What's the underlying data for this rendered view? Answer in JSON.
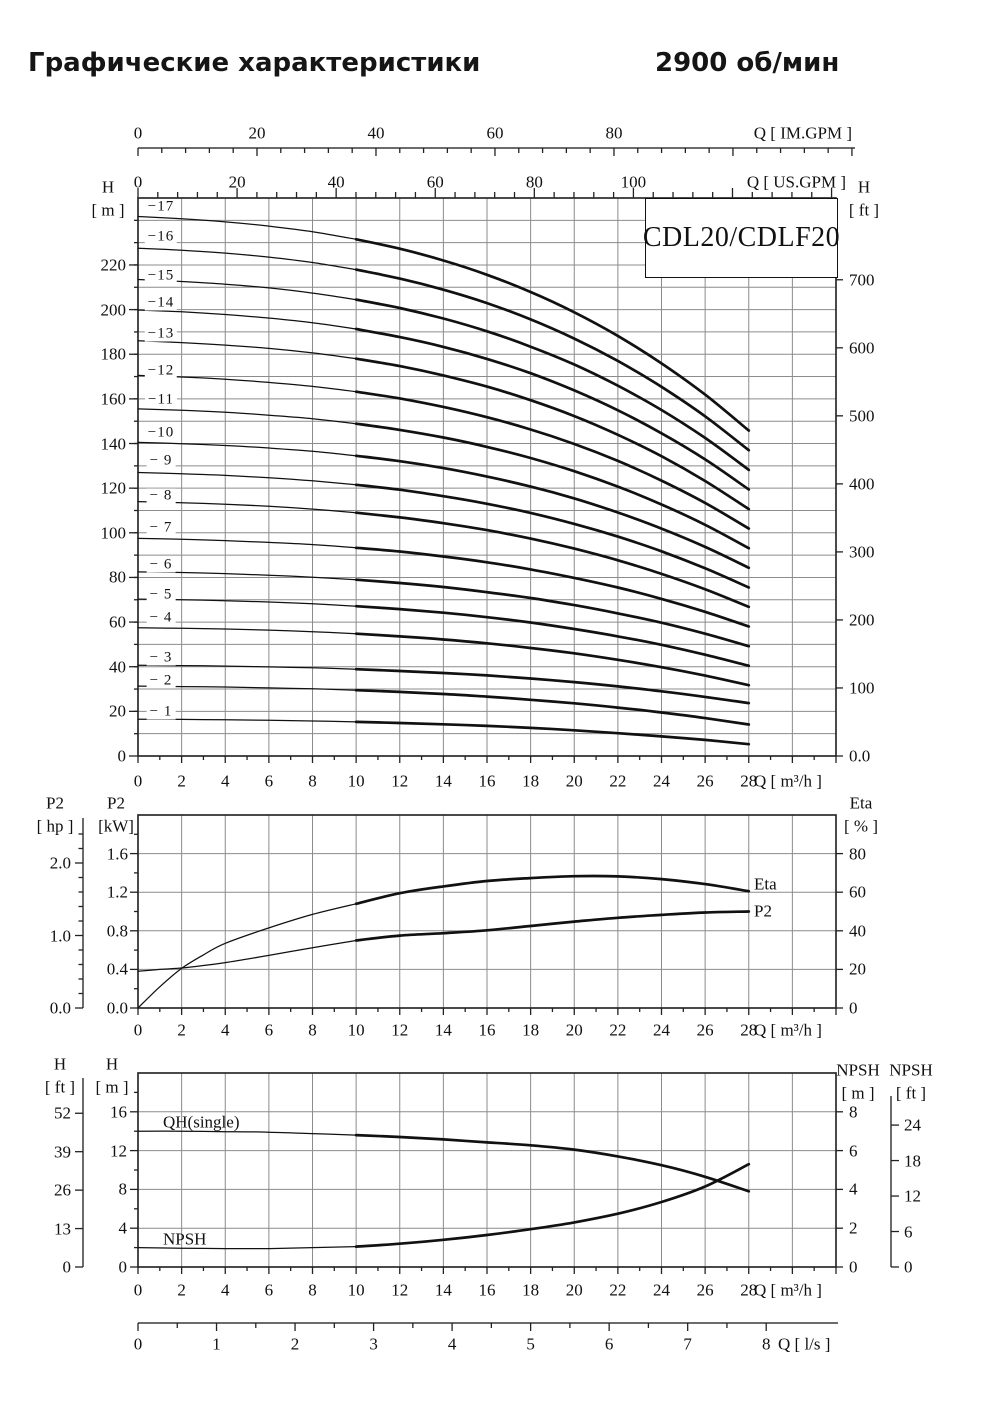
{
  "page": {
    "title_left": "Графические характеристики",
    "title_right": "2900 об/мин",
    "model": "CDL20/CDLF20"
  },
  "top_axes": {
    "im_gpm": {
      "title": "Q [ IM.GPM ]",
      "ticks": [
        0,
        20,
        40,
        60,
        80
      ],
      "minor_step": 4
    },
    "us_gpm": {
      "title": "Q [ US.GPM ]",
      "ticks": [
        0,
        20,
        40,
        60,
        80,
        100
      ],
      "minor_step": 4
    }
  },
  "bottom_axis_ls": {
    "title": "Q [ l/s ]",
    "ticks": [
      0,
      1,
      2,
      3,
      4,
      5,
      6,
      7,
      8
    ],
    "minor_step": 0.5
  },
  "chart_data": [
    {
      "id": "hq-curves",
      "type": "line",
      "title": "CDL20/CDLF20",
      "speed": "2900 об/мин",
      "x_axis": {
        "label": "Q [ m³/h ]",
        "ticks": [
          0,
          2,
          4,
          6,
          8,
          10,
          12,
          14,
          16,
          18,
          20,
          22,
          24,
          26,
          28
        ],
        "lim": [
          0,
          32
        ],
        "grid_step": 2
      },
      "y_axis_left": {
        "label": [
          "H",
          "[ m ]"
        ],
        "ticks": [
          0,
          20,
          40,
          60,
          80,
          100,
          120,
          140,
          160,
          180,
          200,
          220
        ],
        "lim": [
          0,
          250
        ],
        "grid_step": 10
      },
      "y_axis_right": {
        "label": [
          "H",
          "[ ft ]"
        ],
        "ticks": [
          "0.0",
          "100",
          "200",
          "300",
          "400",
          "500",
          "600",
          "700"
        ],
        "tick_values": [
          0,
          100,
          200,
          300,
          400,
          500,
          600,
          700
        ],
        "unit": "ft"
      },
      "x": [
        0,
        2,
        4,
        6,
        8,
        10,
        12,
        14,
        16,
        18,
        20,
        22,
        24,
        26,
        28
      ],
      "bold_from_x": 10,
      "series": [
        {
          "name": "-17",
          "label": "−17",
          "label_y": 246.0,
          "ymax": 250,
          "values": [
            241.7,
            240.7,
            239.3,
            237.4,
            234.9,
            231.5,
            227.3,
            222.0,
            215.6,
            207.9,
            198.8,
            188.2,
            175.9,
            161.9,
            145.8
          ]
        },
        {
          "name": "-16",
          "label": "−16",
          "label_y": 232.7,
          "ymax": 250,
          "values": [
            227.5,
            226.6,
            225.3,
            223.5,
            221.1,
            217.9,
            213.9,
            208.9,
            202.9,
            195.6,
            187.0,
            177.0,
            165.4,
            152.2,
            137.0
          ]
        },
        {
          "name": "-15",
          "label": "−15",
          "label_y": 215.0,
          "ymax": 250,
          "values": [
            213.5,
            212.6,
            211.4,
            209.7,
            207.4,
            204.5,
            200.7,
            196.0,
            190.3,
            183.4,
            175.4,
            165.9,
            155.0,
            142.5,
            128.2
          ]
        },
        {
          "name": "-14",
          "label": "−14",
          "label_y": 203.0,
          "ymax": 250,
          "values": [
            199.8,
            199.0,
            197.8,
            196.2,
            194.1,
            191.3,
            187.7,
            183.3,
            177.9,
            171.5,
            163.8,
            154.9,
            144.6,
            132.9,
            119.4
          ]
        },
        {
          "name": "-13",
          "label": "−13",
          "label_y": 189.0,
          "ymax": 250,
          "values": [
            186.0,
            185.2,
            184.1,
            182.6,
            180.6,
            178.0,
            174.7,
            170.5,
            165.5,
            159.4,
            152.3,
            143.9,
            134.3,
            123.2,
            110.6
          ]
        },
        {
          "name": "-12",
          "label": "−12",
          "label_y": 172.3,
          "ymax": 250,
          "values": [
            170.5,
            169.8,
            168.8,
            167.4,
            165.6,
            163.2,
            160.2,
            156.4,
            151.8,
            146.3,
            139.8,
            132.2,
            123.4,
            113.4,
            101.9
          ]
        },
        {
          "name": "-11",
          "label": "−11",
          "label_y": 159.5,
          "ymax": 250,
          "values": [
            155.5,
            154.9,
            154.0,
            152.7,
            151.1,
            148.9,
            146.1,
            142.7,
            138.5,
            133.5,
            127.6,
            120.7,
            112.7,
            103.6,
            93.1
          ]
        },
        {
          "name": "-10",
          "label": "−10",
          "label_y": 144.5,
          "ymax": 250,
          "values": [
            140.5,
            139.9,
            139.1,
            138.0,
            136.5,
            134.5,
            132.1,
            129.0,
            125.2,
            120.7,
            115.4,
            109.1,
            101.9,
            93.7,
            84.3
          ]
        },
        {
          "name": "-9",
          "label": "− 9",
          "label_y": 132.3,
          "ymax": 250,
          "values": [
            127.0,
            126.5,
            125.7,
            124.7,
            123.3,
            121.5,
            119.3,
            116.4,
            113.0,
            108.9,
            104.0,
            98.3,
            91.7,
            84.1,
            75.5
          ]
        },
        {
          "name": "-8",
          "label": "− 8",
          "label_y": 116.5,
          "ymax": 250,
          "values": [
            114.0,
            113.5,
            112.8,
            111.9,
            110.6,
            109.0,
            106.9,
            104.3,
            101.2,
            97.4,
            92.9,
            87.7,
            81.6,
            74.7,
            66.8
          ]
        },
        {
          "name": "-7",
          "label": "− 7",
          "label_y": 102.0,
          "ymax": 250,
          "values": [
            97.5,
            97.1,
            96.5,
            95.7,
            94.7,
            93.3,
            91.6,
            89.4,
            86.8,
            83.6,
            79.8,
            75.5,
            70.4,
            64.6,
            58.0
          ]
        },
        {
          "name": "-6",
          "label": "− 6",
          "label_y": 85.6,
          "ymax": 250,
          "values": [
            82.5,
            82.2,
            81.7,
            81.0,
            80.1,
            79.0,
            77.5,
            75.7,
            73.4,
            70.8,
            67.6,
            63.9,
            59.7,
            54.8,
            49.2
          ]
        },
        {
          "name": "-5",
          "label": "− 5",
          "label_y": 72.1,
          "ymax": 250,
          "values": [
            70.3,
            70.0,
            69.6,
            69.0,
            68.2,
            67.1,
            65.8,
            64.2,
            62.2,
            59.8,
            56.9,
            53.6,
            49.8,
            45.4,
            40.4
          ]
        },
        {
          "name": "-4",
          "label": "− 4",
          "label_y": 61.8,
          "ymax": 250,
          "values": [
            57.5,
            57.2,
            56.9,
            56.4,
            55.7,
            54.8,
            53.6,
            52.2,
            50.5,
            48.4,
            46.0,
            43.1,
            39.8,
            36.0,
            31.7
          ]
        },
        {
          "name": "-3",
          "label": "− 3",
          "label_y": 44.0,
          "ymax": 250,
          "values": [
            40.7,
            40.5,
            40.3,
            39.9,
            39.5,
            38.9,
            38.1,
            37.2,
            36.1,
            34.7,
            33.1,
            31.2,
            29.0,
            26.5,
            23.7
          ]
        },
        {
          "name": "-2",
          "label": "− 2",
          "label_y": 33.4,
          "ymax": 250,
          "values": [
            31.3,
            31.1,
            30.9,
            30.5,
            30.1,
            29.5,
            28.7,
            27.8,
            26.6,
            25.2,
            23.6,
            21.7,
            19.5,
            17.0,
            14.1
          ]
        },
        {
          "name": "-1",
          "label": "− 1",
          "label_y": 19.7,
          "ymax": 250,
          "values": [
            16.5,
            16.4,
            16.2,
            16.0,
            15.7,
            15.3,
            14.8,
            14.2,
            13.5,
            12.6,
            11.5,
            10.2,
            8.8,
            7.2,
            5.3
          ]
        }
      ]
    },
    {
      "id": "power-efficiency",
      "type": "line",
      "x_axis": {
        "label": "Q [ m³/h ]",
        "ticks": [
          0,
          2,
          4,
          6,
          8,
          10,
          12,
          14,
          16,
          18,
          20,
          22,
          24,
          26,
          28
        ],
        "lim": [
          0,
          32
        ],
        "grid_step": 2
      },
      "y_axis_left": {
        "label": [
          "P2",
          "[kW]"
        ],
        "ticks": [
          "0.0",
          "0.4",
          "0.8",
          "1.2",
          "1.6"
        ],
        "tick_values": [
          0,
          0.4,
          0.8,
          1.2,
          1.6
        ],
        "lim": [
          0,
          2
        ],
        "grid_step": 0.4,
        "minor_step": 0.2
      },
      "y_axis_far_left": {
        "label": [
          "P2",
          "[ hp ]"
        ],
        "ticks": [
          "0.0",
          "1.0",
          "2.0"
        ],
        "tick_values": [
          0,
          1,
          2
        ],
        "minor_step": 0.2,
        "unit": "hp"
      },
      "y_axis_right": {
        "label": [
          "Eta",
          "[ % ]"
        ],
        "ticks": [
          0,
          20,
          40,
          60,
          80
        ],
        "lim": [
          0,
          100
        ]
      },
      "x": [
        0,
        1,
        2,
        3,
        4,
        6,
        8,
        10,
        12,
        14,
        16,
        18,
        20,
        22,
        24,
        26,
        28
      ],
      "bold_from_x": 10,
      "series": [
        {
          "name": "P2",
          "label": "P2",
          "unit": "kW",
          "ymax": 2,
          "values": [
            0.38,
            0.4,
            0.415,
            0.44,
            0.47,
            0.545,
            0.625,
            0.7,
            0.75,
            0.775,
            0.805,
            0.85,
            0.895,
            0.935,
            0.965,
            0.99,
            1.0
          ]
        },
        {
          "name": "Eta",
          "label": "Eta",
          "unit": "%",
          "ymax": 100,
          "values": [
            0,
            11,
            20.5,
            27.5,
            33.5,
            41.5,
            48.5,
            54,
            59.5,
            63,
            65.8,
            67.3,
            68.3,
            68.2,
            66.8,
            64.2,
            60.5
          ]
        }
      ]
    },
    {
      "id": "qh-npsh",
      "type": "line",
      "x_axis": {
        "label": "Q [ m³/h ]",
        "ticks": [
          0,
          2,
          4,
          6,
          8,
          10,
          12,
          14,
          16,
          18,
          20,
          22,
          24,
          26,
          28
        ],
        "lim": [
          0,
          32
        ],
        "grid_step": 2
      },
      "y_axis_left": {
        "label": [
          "H",
          "[ m ]"
        ],
        "ticks": [
          0,
          4,
          8,
          12,
          16
        ],
        "lim": [
          0,
          20
        ],
        "grid_step": 4,
        "minor_step": 2
      },
      "y_axis_far_left": {
        "label": [
          "H",
          "[ ft ]"
        ],
        "ticks": [
          0,
          13,
          26,
          39,
          52
        ],
        "unit": "ft"
      },
      "y_axis_right": {
        "label": [
          "NPSH",
          "[ m ]"
        ],
        "ticks": [
          0,
          2,
          4,
          6,
          8
        ],
        "lim": [
          0,
          10
        ]
      },
      "y_axis_far_right": {
        "label": [
          "NPSH",
          "[ ft ]"
        ],
        "ticks": [
          0,
          6,
          12,
          18,
          24
        ],
        "unit": "ft"
      },
      "x": [
        0,
        2,
        4,
        6,
        8,
        10,
        12,
        14,
        16,
        18,
        20,
        22,
        24,
        26,
        28
      ],
      "bold_from_x": 10,
      "series": [
        {
          "name": "QH(single)",
          "label": "QH(single)",
          "unit": "m",
          "ymax": 20,
          "values": [
            14.0,
            14.0,
            13.95,
            13.9,
            13.75,
            13.6,
            13.4,
            13.15,
            12.85,
            12.55,
            12.1,
            11.4,
            10.5,
            9.3,
            7.8
          ]
        },
        {
          "name": "NPSH",
          "label": "NPSH",
          "unit": "m",
          "ymax": 10,
          "values": [
            1.0,
            0.97,
            0.95,
            0.95,
            1.0,
            1.05,
            1.2,
            1.4,
            1.65,
            1.95,
            2.3,
            2.75,
            3.35,
            4.15,
            5.3
          ]
        }
      ]
    }
  ]
}
